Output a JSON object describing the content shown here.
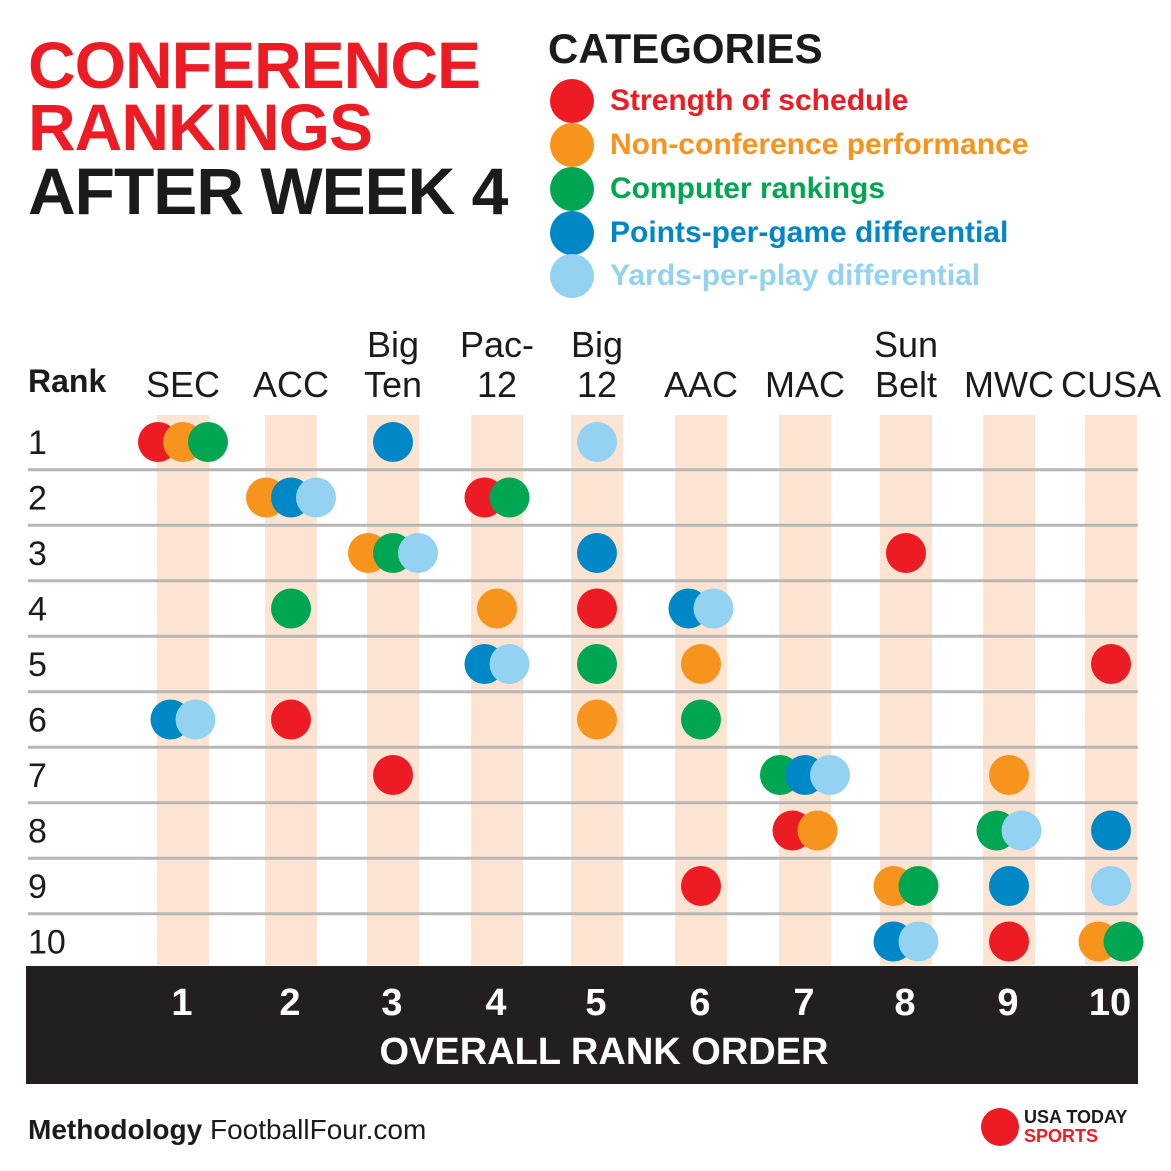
{
  "header": {
    "title_lines": [
      "CONFERENCE",
      "RANKINGS",
      "AFTER WEEK 4"
    ]
  },
  "legend": {
    "title": "CATEGORIES",
    "items": [
      {
        "label": "Strength of schedule",
        "color": "#ed1c24"
      },
      {
        "label": "Non-conference performance",
        "color": "#f7941d"
      },
      {
        "label": "Computer rankings",
        "color": "#00a651"
      },
      {
        "label": "Points-per-game differential",
        "color": "#0088c6"
      },
      {
        "label": "Yards-per-play differential",
        "color": "#94d2f1"
      }
    ]
  },
  "footer": {
    "methodology_label": "Methodology",
    "methodology_source": "FootballFour.com",
    "logo_line1": "USA TODAY",
    "logo_line2": "SPORTS"
  },
  "colors": {
    "title_red": "#ed1c24",
    "text_dark": "#1c1a1a",
    "column_band": "#fde4d2",
    "row_line": "#b8b6b6",
    "axis_bar": "#231f20"
  },
  "chart_data": {
    "type": "scatter",
    "row_header": "Rank",
    "xlabel": "OVERALL RANK ORDER",
    "x_ticks": [
      "1",
      "2",
      "3",
      "4",
      "5",
      "6",
      "7",
      "8",
      "9",
      "10"
    ],
    "y_ticks": [
      "1",
      "2",
      "3",
      "4",
      "5",
      "6",
      "7",
      "8",
      "9",
      "10"
    ],
    "conferences": [
      [
        "SEC"
      ],
      [
        "ACC"
      ],
      [
        "Big",
        "Ten"
      ],
      [
        "Pac-",
        "12"
      ],
      [
        "Big",
        "12"
      ],
      [
        "AAC"
      ],
      [
        "MAC"
      ],
      [
        "Sun",
        "Belt"
      ],
      [
        "MWC"
      ],
      [
        "CUSA"
      ]
    ],
    "series": [
      {
        "name": "Strength of schedule",
        "color": "#ed1c24",
        "ranks": [
          1,
          6,
          7,
          2,
          4,
          9,
          8,
          3,
          10,
          5
        ]
      },
      {
        "name": "Non-conference performance",
        "color": "#f7941d",
        "ranks": [
          1,
          2,
          3,
          4,
          6,
          5,
          8,
          9,
          7,
          10
        ]
      },
      {
        "name": "Computer rankings",
        "color": "#00a651",
        "ranks": [
          1,
          4,
          3,
          2,
          5,
          6,
          7,
          9,
          8,
          10
        ]
      },
      {
        "name": "Points-per-game differential",
        "color": "#0088c6",
        "ranks": [
          6,
          2,
          1,
          5,
          3,
          4,
          7,
          10,
          9,
          8
        ]
      },
      {
        "name": "Yards-per-play differential",
        "color": "#94d2f1",
        "ranks": [
          6,
          2,
          3,
          5,
          1,
          4,
          7,
          10,
          8,
          9
        ]
      }
    ]
  }
}
